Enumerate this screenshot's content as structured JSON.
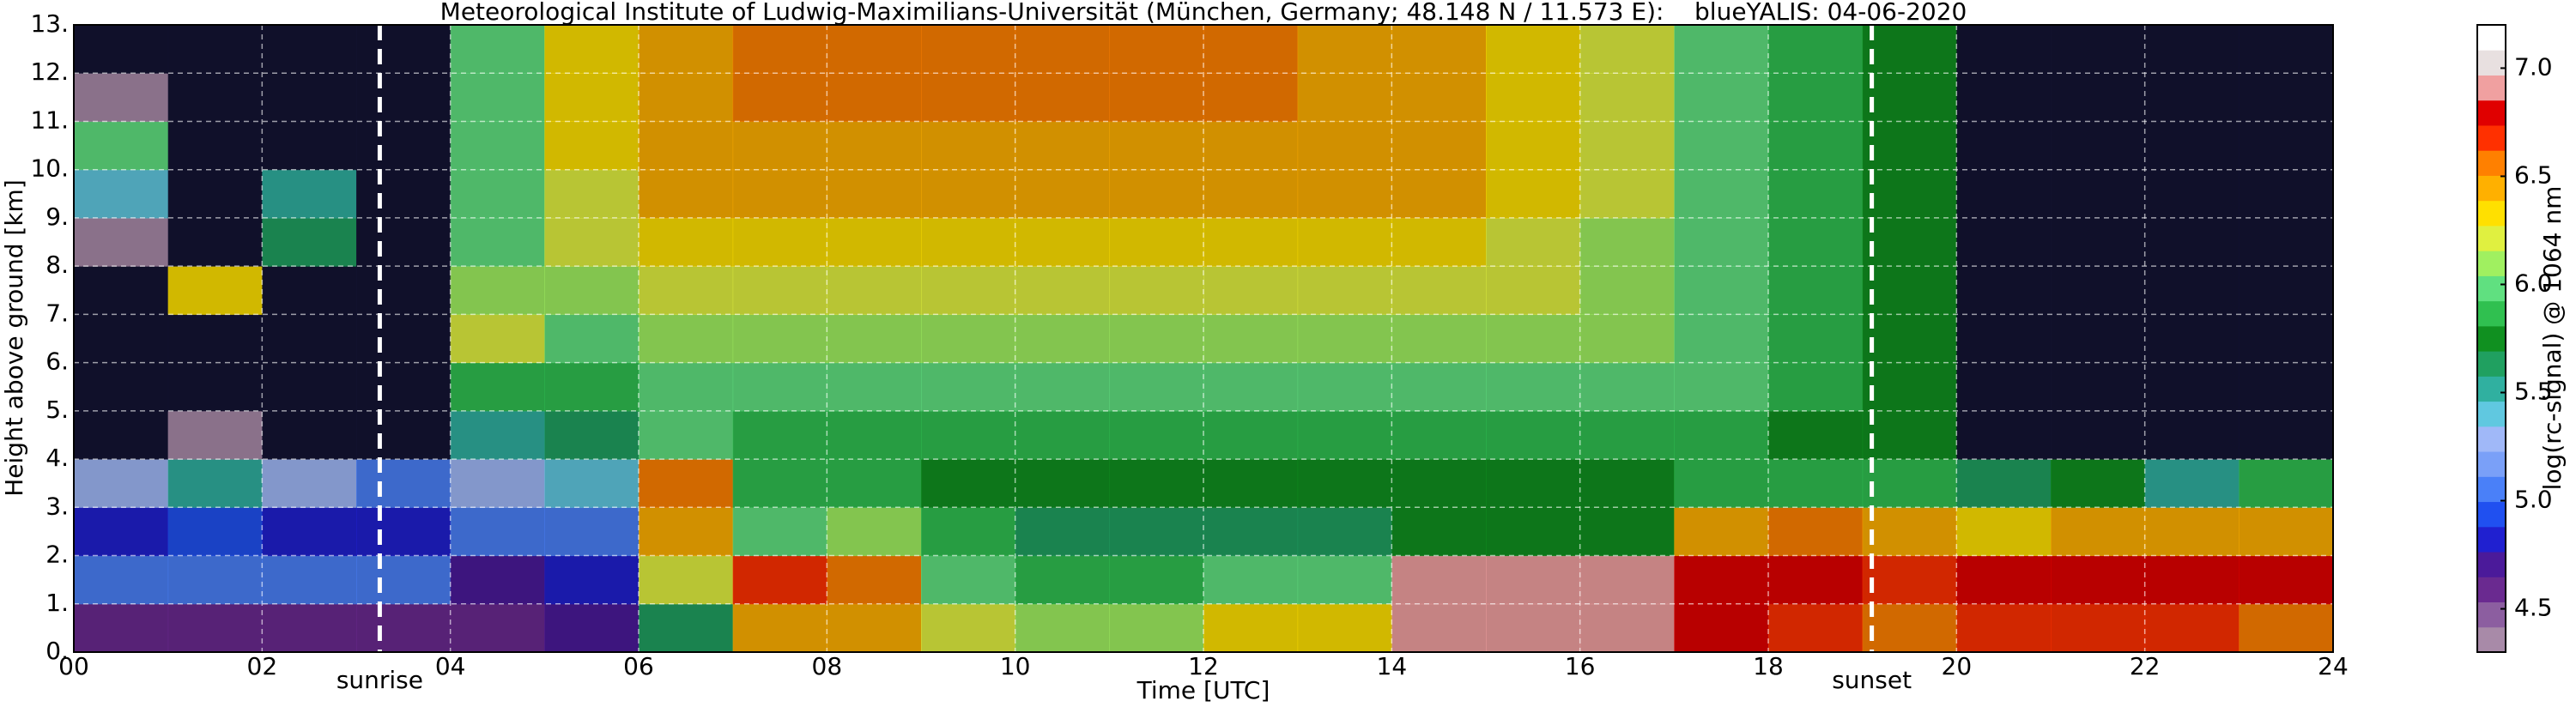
{
  "chart_data": {
    "type": "heatmap",
    "title": "Meteorological Institute of Ludwig-Maximilians-Universität (München, Germany; 48.148 N / 11.573 E):    blueYALIS: 04-06-2020",
    "x_label": "Time [UTC]",
    "y_label": "Height above ground [km]",
    "colorbar_label": "log(rc-signal) @ 1064 nm",
    "x_edges": [
      0,
      1,
      2,
      3,
      4,
      5,
      6,
      7,
      8,
      9,
      10,
      11,
      12,
      13,
      14,
      15,
      16,
      17,
      18,
      19,
      20,
      21,
      22,
      23,
      24
    ],
    "y_edges": [
      0,
      1,
      2,
      3,
      4,
      5,
      6,
      7,
      8,
      9,
      10,
      11,
      12,
      13
    ],
    "z": [
      [
        4.6,
        4.6,
        4.6,
        4.6,
        4.6,
        4.7,
        5.6,
        6.4,
        6.5,
        6.2,
        6.1,
        6.1,
        6.3,
        6.3,
        6.9,
        6.9,
        6.9,
        6.8,
        6.7,
        6.6,
        6.7,
        6.7,
        6.7,
        6.6
      ],
      [
        5.0,
        5.0,
        5.0,
        5.0,
        4.7,
        4.8,
        6.2,
        6.7,
        6.6,
        6.0,
        5.9,
        5.9,
        6.0,
        6.0,
        6.9,
        6.9,
        6.9,
        6.8,
        6.8,
        6.7,
        6.8,
        6.8,
        6.8,
        6.8
      ],
      [
        4.8,
        4.9,
        4.8,
        4.8,
        5.1,
        5.0,
        6.5,
        6.0,
        6.1,
        5.9,
        5.6,
        5.6,
        5.6,
        5.6,
        5.7,
        5.7,
        5.8,
        6.4,
        6.6,
        6.5,
        6.3,
        6.5,
        6.4,
        6.5
      ],
      [
        5.3,
        5.5,
        5.3,
        5.0,
        5.3,
        5.4,
        6.6,
        5.9,
        5.9,
        5.8,
        5.7,
        5.7,
        5.7,
        5.8,
        5.8,
        5.8,
        5.8,
        5.9,
        5.9,
        5.9,
        5.6,
        5.8,
        5.5,
        5.9
      ],
      [
        4.2,
        4.3,
        4.2,
        4.2,
        5.5,
        5.6,
        6.0,
        5.9,
        5.9,
        5.9,
        5.9,
        5.9,
        5.9,
        5.9,
        5.9,
        5.9,
        5.9,
        5.9,
        5.8,
        5.7,
        4.1,
        4.1,
        4.1,
        4.2
      ],
      [
        4.1,
        4.1,
        4.1,
        4.1,
        5.9,
        5.9,
        6.0,
        6.0,
        6.0,
        6.0,
        6.0,
        6.0,
        6.0,
        6.0,
        6.0,
        6.0,
        6.0,
        6.0,
        5.9,
        5.8,
        4.1,
        4.1,
        4.1,
        4.1
      ],
      [
        4.1,
        4.1,
        4.1,
        4.1,
        6.2,
        6.0,
        6.1,
        6.1,
        6.1,
        6.1,
        6.1,
        6.1,
        6.1,
        6.1,
        6.1,
        6.1,
        6.1,
        6.0,
        5.9,
        5.8,
        4.1,
        4.1,
        4.1,
        4.1
      ],
      [
        4.1,
        6.3,
        4.1,
        4.1,
        6.1,
        6.1,
        6.2,
        6.2,
        6.2,
        6.2,
        6.2,
        6.2,
        6.2,
        6.2,
        6.2,
        6.2,
        6.1,
        6.0,
        5.9,
        5.8,
        4.1,
        4.1,
        4.1,
        4.1
      ],
      [
        4.3,
        4.1,
        5.6,
        4.1,
        6.0,
        6.2,
        6.3,
        6.3,
        6.3,
        6.3,
        6.3,
        6.3,
        6.3,
        6.3,
        6.3,
        6.2,
        6.1,
        6.0,
        5.9,
        5.8,
        4.1,
        4.1,
        4.1,
        4.1
      ],
      [
        5.4,
        4.1,
        5.5,
        4.1,
        6.0,
        6.2,
        6.4,
        6.4,
        6.4,
        6.4,
        6.4,
        6.4,
        6.4,
        6.4,
        6.4,
        6.3,
        6.2,
        6.0,
        5.9,
        5.8,
        4.1,
        4.1,
        4.1,
        4.1
      ],
      [
        6.0,
        4.1,
        4.1,
        4.1,
        6.0,
        6.3,
        6.5,
        6.5,
        6.5,
        6.5,
        6.5,
        6.5,
        6.5,
        6.5,
        6.4,
        6.3,
        6.2,
        6.0,
        5.9,
        5.8,
        4.1,
        4.1,
        4.1,
        4.1
      ],
      [
        4.3,
        4.1,
        4.1,
        4.1,
        6.0,
        6.3,
        6.5,
        6.6,
        6.6,
        6.6,
        6.6,
        6.6,
        6.6,
        6.5,
        6.4,
        6.3,
        6.2,
        6.0,
        5.9,
        5.8,
        4.1,
        4.1,
        4.1,
        4.1
      ],
      [
        4.1,
        4.1,
        4.1,
        4.1,
        6.0,
        6.3,
        6.5,
        6.6,
        6.6,
        6.6,
        6.6,
        6.6,
        6.6,
        6.5,
        6.4,
        6.3,
        6.2,
        6.0,
        5.9,
        5.8,
        4.1,
        4.1,
        4.1,
        4.1
      ]
    ],
    "xlim": [
      0,
      24
    ],
    "xticks": [
      {
        "value": 0,
        "label": "00"
      },
      {
        "value": 2,
        "label": "02"
      },
      {
        "value": 4,
        "label": "04"
      },
      {
        "value": 6,
        "label": "06"
      },
      {
        "value": 8,
        "label": "08"
      },
      10,
      12,
      14,
      16,
      18,
      20,
      22,
      24
    ],
    "ylim": [
      0,
      13
    ],
    "yticks": [
      {
        "value": 0,
        "label": "0."
      },
      {
        "value": 1,
        "label": "1."
      },
      {
        "value": 2,
        "label": "2."
      },
      {
        "value": 3,
        "label": "3."
      },
      {
        "value": 4,
        "label": "4."
      },
      {
        "value": 5,
        "label": "5."
      },
      {
        "value": 6,
        "label": "6."
      },
      {
        "value": 7,
        "label": "7."
      },
      {
        "value": 8,
        "label": "8."
      },
      {
        "value": 9,
        "label": "9."
      },
      {
        "value": 10,
        "label": "10."
      },
      {
        "value": 11,
        "label": "11."
      },
      {
        "value": 12,
        "label": "12."
      },
      {
        "value": 13,
        "label": "13."
      }
    ],
    "clim": [
      4.3,
      7.2
    ],
    "cticks": [
      4.5,
      {
        "value": 5,
        "label": "5.0"
      },
      5.5,
      {
        "value": 6,
        "label": "6.0"
      },
      6.5,
      {
        "value": 7,
        "label": "7.0"
      }
    ],
    "colormap": [
      "#a88aa8",
      "#8c5ea0",
      "#6a2a90",
      "#4b1a9a",
      "#2020d0",
      "#2050f0",
      "#4a80f8",
      "#7aa0f8",
      "#a0b8f8",
      "#60c8e0",
      "#30b0a0",
      "#20a060",
      "#109020",
      "#30c050",
      "#60e080",
      "#a0f060",
      "#e0f040",
      "#ffe000",
      "#ffb000",
      "#ff8000",
      "#ff3000",
      "#e00000",
      "#f0a0a0",
      "#e8e0e0",
      "#ffffff"
    ],
    "under_color": "#141433",
    "grid": true,
    "annotations": [
      {
        "text": "sunrise",
        "x": 3.25
      },
      {
        "text": "sunset",
        "x": 19.1
      }
    ]
  }
}
